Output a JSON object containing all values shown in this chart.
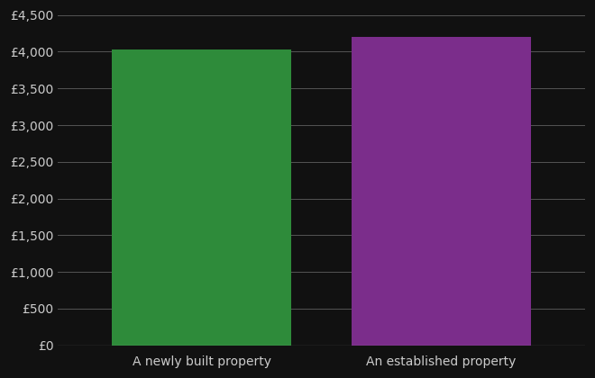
{
  "categories": [
    "A newly built property",
    "An established property"
  ],
  "values": [
    4030,
    4200
  ],
  "bar_colors": [
    "#2e8b3a",
    "#7b2d8b"
  ],
  "background_color": "#111111",
  "text_color": "#cccccc",
  "grid_color": "#555555",
  "ylim": [
    0,
    4500
  ],
  "ytick_step": 500,
  "figsize": [
    6.6,
    4.2
  ],
  "dpi": 100
}
